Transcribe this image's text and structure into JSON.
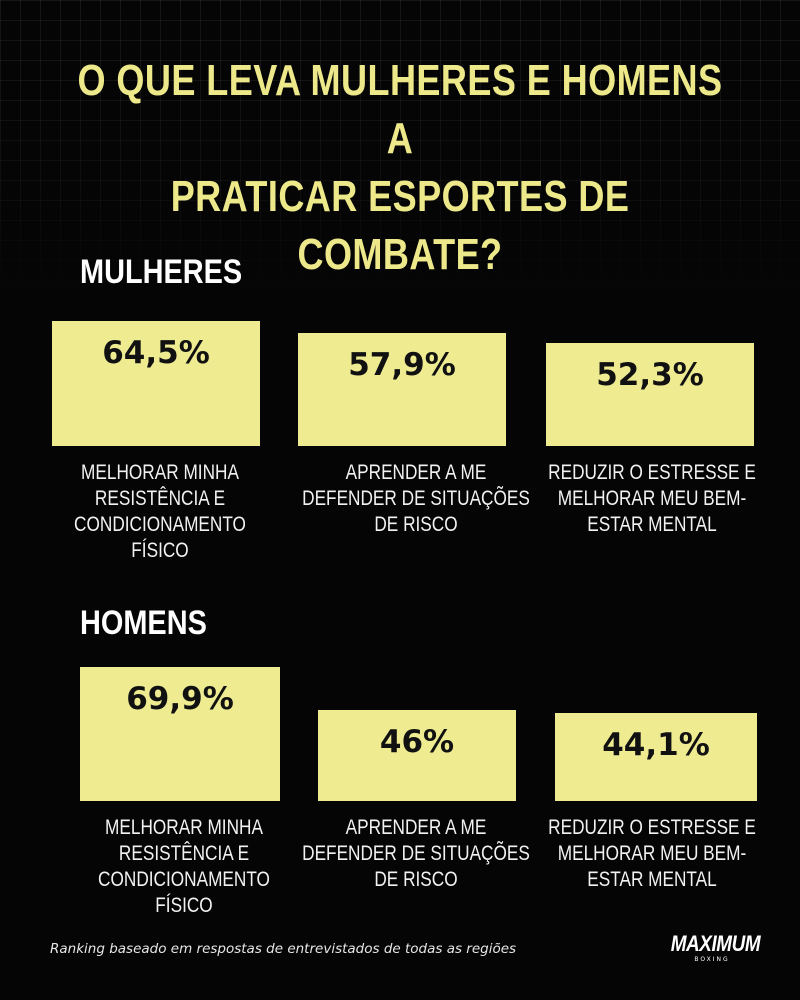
{
  "title_line1": "O QUE LEVA MULHERES E HOMENS A",
  "title_line2": "PRATICAR ESPORTES DE COMBATE?",
  "colors": {
    "background": "#050505",
    "accent": "#eeeb91",
    "title": "#ede98a",
    "text": "#ffffff"
  },
  "chart_data": [
    {
      "type": "bar",
      "title": "MULHERES",
      "categories": [
        "MELHORAR MINHA RESISTÊNCIA E CONDICIONAMENTO FÍSICO",
        "APRENDER A ME DEFENDER DE SITUAÇÕES DE RISCO",
        "REDUZIR O ESTRESSE E MELHORAR MEU BEM-ESTAR MENTAL"
      ],
      "values": [
        64.5,
        57.9,
        52.3
      ],
      "value_labels": [
        "64,5%",
        "57,9%",
        "52,3%"
      ],
      "label_lines": [
        [
          "MELHORAR MINHA",
          "RESISTÊNCIA E",
          "CONDICIONAMENTO FÍSICO"
        ],
        [
          "APRENDER A ME",
          "DEFENDER DE SITUAÇÕES",
          "DE RISCO"
        ],
        [
          "REDUZIR O ESTRESSE E",
          "MELHORAR MEU BEM-",
          "ESTAR MENTAL"
        ]
      ],
      "xlabel": "",
      "ylabel": "",
      "grid": false
    },
    {
      "type": "bar",
      "title": "HOMENS",
      "categories": [
        "MELHORAR MINHA RESISTÊNCIA E CONDICIONAMENTO FÍSICO",
        "APRENDER A ME DEFENDER DE SITUAÇÕES DE RISCO",
        "REDUZIR O ESTRESSE E MELHORAR MEU BEM-ESTAR MENTAL"
      ],
      "values": [
        69.9,
        46,
        44.1
      ],
      "value_labels": [
        "69,9%",
        "46%",
        "44,1%"
      ],
      "label_lines": [
        [
          "MELHORAR MINHA",
          "RESISTÊNCIA E",
          "CONDICIONAMENTO FÍSICO"
        ],
        [
          "APRENDER A ME",
          "DEFENDER DE SITUAÇÕES",
          "DE RISCO"
        ],
        [
          "REDUZIR O ESTRESSE E",
          "MELHORAR MEU BEM-",
          "ESTAR MENTAL"
        ]
      ],
      "xlabel": "",
      "ylabel": "",
      "grid": false
    }
  ],
  "footer_note": "Ranking baseado em respostas de entrevistados de todas as regiões",
  "logo": {
    "name": "MAXIMUM",
    "subtitle": "BOXING"
  }
}
